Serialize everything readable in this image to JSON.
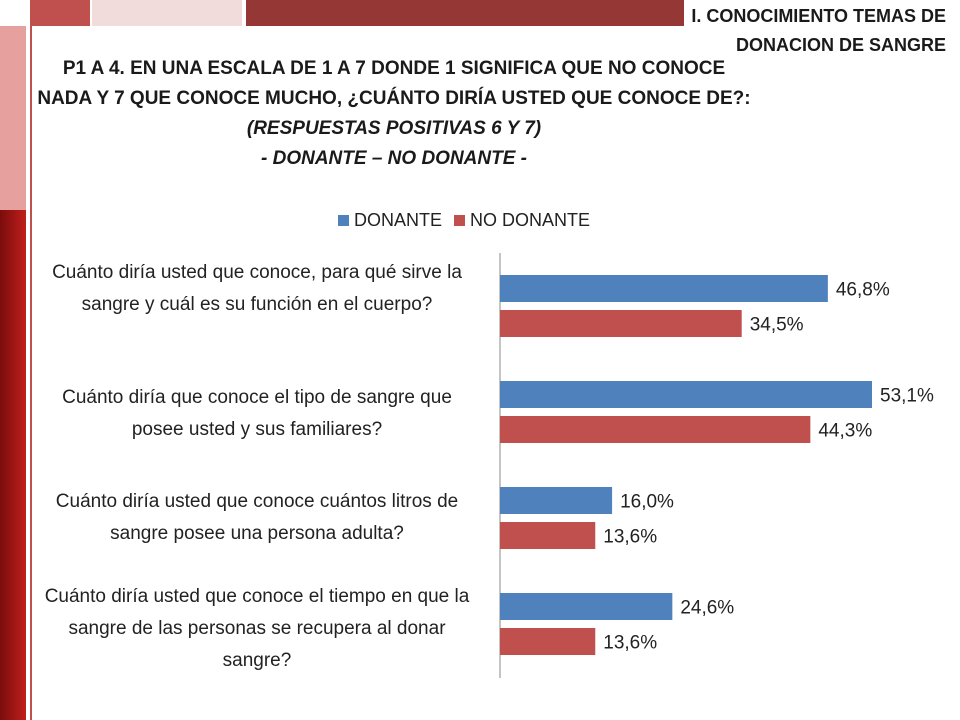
{
  "header": {
    "section_title": "I. CONOCIMIENTO TEMAS DE DONACION DE SANGRE",
    "question_line1": "P1 A 4. EN UNA ESCALA DE 1 A 7 DONDE 1 SIGNIFICA QUE NO CONOCE NADA Y 7 QUE CONOCE MUCHO, ¿CUÁNTO DIRÍA USTED QUE CONOCE DE?:",
    "question_line2": "(RESPUESTAS POSITIVAS 6 Y 7)",
    "question_line3": "- DONANTE – NO DONANTE -"
  },
  "colors": {
    "donante": "#4f81bd",
    "no_donante": "#c0504d"
  },
  "chart_data": {
    "type": "bar",
    "orientation": "horizontal",
    "categories": [
      "Cuánto diría usted que conoce, para qué sirve la sangre y cuál es su función en el cuerpo?",
      "Cuánto diría que conoce el tipo de sangre que posee usted y sus familiares?",
      "Cuánto diría usted que conoce cuántos litros de sangre posee una persona adulta?",
      "Cuánto diría usted que conoce el tiempo en que la sangre de las personas se recupera al donar sangre?"
    ],
    "series": [
      {
        "name": "DONANTE",
        "values": [
          46.8,
          53.1,
          16.0,
          24.6
        ],
        "labels": [
          "46,8%",
          "53,1%",
          "16,0%",
          "24,6%"
        ]
      },
      {
        "name": "NO DONANTE",
        "values": [
          34.5,
          44.3,
          13.6,
          13.6
        ],
        "labels": [
          "34,5%",
          "44,3%",
          "13,6%",
          "13,6%"
        ]
      }
    ],
    "xlim": [
      0,
      60
    ],
    "grid": false,
    "legend_position": "top"
  }
}
